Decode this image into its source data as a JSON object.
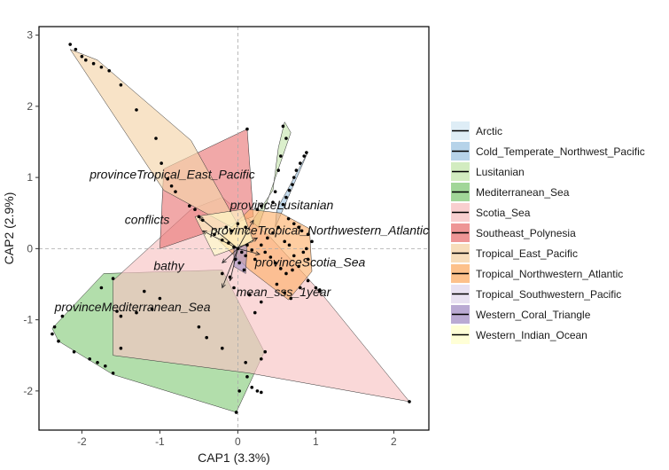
{
  "chart_data": {
    "type": "scatter",
    "xlabel": "CAP1 (3.3%)",
    "ylabel": "CAP2 (2.9%)",
    "xlim": [
      -2.55,
      2.45
    ],
    "ylim": [
      -2.55,
      3.12
    ],
    "x_ticks": [
      -2,
      -1,
      0,
      1,
      2
    ],
    "y_ticks": [
      -2,
      -1,
      0,
      1,
      2,
      3
    ],
    "x_tick_labels": [
      "-2",
      "-1",
      "0",
      "1",
      "2"
    ],
    "y_tick_labels": [
      "-2",
      "-1",
      "0",
      "1",
      "2",
      "3"
    ],
    "reference_lines": {
      "x": 0,
      "y": 0,
      "style": "dashed"
    },
    "legend": {
      "placement": "right"
    },
    "series": [
      {
        "name": "Arctic",
        "color": "#d6e8f4",
        "hull": []
      },
      {
        "name": "Cold_Temperate_Northwest_Pacific",
        "color": "#a4c8e4",
        "hull": [
          [
            0.48,
            0.3
          ],
          [
            0.9,
            1.36
          ],
          [
            0.5,
            0.55
          ]
        ]
      },
      {
        "name": "Lusitanian",
        "color": "#c7e7b0",
        "hull": [
          [
            0.18,
            0.38
          ],
          [
            0.45,
            0.82
          ],
          [
            0.52,
            1.42
          ],
          [
            0.6,
            1.78
          ],
          [
            0.68,
            1.63
          ],
          [
            0.2,
            0.1
          ]
        ]
      },
      {
        "name": "Mediterranean_Sea",
        "color": "#89cc7e",
        "hull": [
          [
            -2.38,
            -1.12
          ],
          [
            -1.72,
            -0.35
          ],
          [
            -0.2,
            -0.3
          ],
          [
            0.34,
            -1.45
          ],
          [
            -0.02,
            -2.3
          ],
          [
            -1.6,
            -1.77
          ],
          [
            -2.3,
            -1.3
          ]
        ]
      },
      {
        "name": "Scotia_Sea",
        "color": "#f8c3c3",
        "hull": [
          [
            -1.6,
            -0.45
          ],
          [
            -0.6,
            0.55
          ],
          [
            -0.2,
            0.72
          ],
          [
            0.4,
            0.18
          ],
          [
            1.05,
            -0.6
          ],
          [
            2.2,
            -2.15
          ],
          [
            0.15,
            -1.75
          ],
          [
            -1.6,
            -1.5
          ]
        ]
      },
      {
        "name": "Southeast_Polynesia",
        "color": "#ea7a7a",
        "hull": [
          [
            -1.0,
            0.0
          ],
          [
            -0.95,
            1.12
          ],
          [
            0.12,
            1.68
          ],
          [
            0.2,
            0.45
          ]
        ]
      },
      {
        "name": "Tropical_East_Pacific",
        "color": "#f5d4a9",
        "hull": [
          [
            -2.15,
            2.8
          ],
          [
            -1.8,
            2.65
          ],
          [
            -0.6,
            1.52
          ],
          [
            0.06,
            0.22
          ],
          [
            -0.95,
            0.82
          ]
        ]
      },
      {
        "name": "Tropical_Northwestern_Atlantic",
        "color": "#fdb26e",
        "hull": [
          [
            -0.25,
            0.12
          ],
          [
            0.15,
            0.55
          ],
          [
            0.55,
            0.5
          ],
          [
            0.92,
            0.28
          ],
          [
            0.95,
            -0.32
          ],
          [
            0.65,
            -0.72
          ],
          [
            0.15,
            -0.3
          ]
        ]
      },
      {
        "name": "Tropical_Southwestern_Pacific",
        "color": "#e2daee",
        "hull": []
      },
      {
        "name": "Western_Coral_Triangle",
        "color": "#a995c8",
        "hull": [
          [
            -0.05,
            0.02
          ],
          [
            0.12,
            0.05
          ],
          [
            0.1,
            -0.35
          ],
          [
            -0.05,
            -0.25
          ]
        ]
      },
      {
        "name": "Western_Indian_Ocean",
        "color": "#ffffcc",
        "hull": [
          [
            -0.55,
            0.45
          ],
          [
            0.05,
            0.55
          ],
          [
            0.2,
            0.1
          ],
          [
            -0.3,
            -0.1
          ]
        ]
      }
    ],
    "points": [
      [
        -2.15,
        2.87
      ],
      [
        -2.08,
        2.8
      ],
      [
        -2.0,
        2.7
      ],
      [
        -1.95,
        2.65
      ],
      [
        -1.85,
        2.6
      ],
      [
        -1.75,
        2.55
      ],
      [
        -1.65,
        2.5
      ],
      [
        -1.5,
        2.3
      ],
      [
        -1.3,
        1.95
      ],
      [
        -1.05,
        1.55
      ],
      [
        -0.98,
        1.2
      ],
      [
        -0.9,
        0.98
      ],
      [
        -0.85,
        0.88
      ],
      [
        -0.8,
        0.8
      ],
      [
        -0.62,
        0.6
      ],
      [
        -0.55,
        0.55
      ],
      [
        -0.5,
        0.45
      ],
      [
        -0.45,
        0.4
      ],
      [
        0.12,
        1.68
      ],
      [
        0.58,
        1.72
      ],
      [
        0.62,
        1.55
      ],
      [
        0.55,
        1.3
      ],
      [
        0.52,
        1.1
      ],
      [
        0.48,
        0.8
      ],
      [
        0.45,
        0.65
      ],
      [
        0.3,
        0.6
      ],
      [
        0.25,
        0.55
      ],
      [
        0.88,
        1.35
      ],
      [
        0.85,
        1.3
      ],
      [
        0.8,
        1.2
      ],
      [
        0.75,
        1.1
      ],
      [
        0.72,
        1.0
      ],
      [
        0.7,
        0.9
      ],
      [
        0.66,
        0.82
      ],
      [
        0.62,
        0.72
      ],
      [
        0.58,
        0.62
      ],
      [
        0.65,
        0.42
      ],
      [
        0.72,
        0.35
      ],
      [
        0.78,
        0.3
      ],
      [
        0.82,
        0.25
      ],
      [
        0.9,
        0.2
      ],
      [
        0.95,
        0.1
      ],
      [
        0.88,
        0.0
      ],
      [
        0.84,
        -0.05
      ],
      [
        0.9,
        -0.15
      ],
      [
        0.78,
        -0.25
      ],
      [
        0.7,
        -0.3
      ],
      [
        0.62,
        -0.35
      ],
      [
        0.55,
        -0.28
      ],
      [
        0.48,
        -0.2
      ],
      [
        0.42,
        -0.12
      ],
      [
        0.35,
        -0.05
      ],
      [
        0.3,
        0.05
      ],
      [
        0.38,
        0.15
      ],
      [
        0.45,
        0.22
      ],
      [
        0.52,
        0.3
      ],
      [
        0.6,
        0.1
      ],
      [
        0.66,
        0.05
      ],
      [
        0.72,
        -0.1
      ],
      [
        0.5,
        -0.5
      ],
      [
        0.6,
        -0.62
      ],
      [
        0.68,
        -0.7
      ],
      [
        0.8,
        -0.55
      ],
      [
        0.9,
        -0.45
      ],
      [
        1.0,
        -0.55
      ],
      [
        1.05,
        -0.6
      ],
      [
        -0.3,
        0.2
      ],
      [
        -0.2,
        0.12
      ],
      [
        -0.12,
        0.08
      ],
      [
        -0.05,
        0.02
      ],
      [
        0.0,
        0.0
      ],
      [
        0.05,
        -0.05
      ],
      [
        0.1,
        -0.1
      ],
      [
        0.02,
        -0.2
      ],
      [
        -0.03,
        -0.15
      ],
      [
        0.08,
        -0.3
      ],
      [
        0.12,
        0.05
      ],
      [
        0.18,
        -0.02
      ],
      [
        0.22,
        -0.15
      ],
      [
        -0.08,
        0.25
      ],
      [
        -0.15,
        0.3
      ],
      [
        0.0,
        0.35
      ],
      [
        0.1,
        0.3
      ],
      [
        -1.6,
        -0.42
      ],
      [
        -1.2,
        -0.6
      ],
      [
        -1.0,
        -0.7
      ],
      [
        -1.1,
        -0.85
      ],
      [
        -1.3,
        -0.9
      ],
      [
        -1.5,
        -0.95
      ],
      [
        -1.55,
        -0.88
      ],
      [
        -1.75,
        -0.55
      ],
      [
        -2.25,
        -0.95
      ],
      [
        -2.35,
        -1.1
      ],
      [
        -2.38,
        -1.2
      ],
      [
        -2.3,
        -1.3
      ],
      [
        -2.1,
        -1.45
      ],
      [
        -1.9,
        -1.55
      ],
      [
        -1.8,
        -1.6
      ],
      [
        -1.7,
        -1.65
      ],
      [
        -1.6,
        -1.75
      ],
      [
        -1.5,
        -1.4
      ],
      [
        -0.5,
        -1.1
      ],
      [
        -0.4,
        -1.25
      ],
      [
        0.35,
        -1.45
      ],
      [
        0.3,
        -1.55
      ],
      [
        0.1,
        -1.6
      ],
      [
        0.12,
        -1.8
      ],
      [
        0.18,
        -1.95
      ],
      [
        0.25,
        -2.0
      ],
      [
        0.3,
        -2.02
      ],
      [
        0.02,
        -2.0
      ],
      [
        -0.02,
        -2.3
      ],
      [
        -0.2,
        -1.4
      ],
      [
        0.22,
        -0.9
      ],
      [
        0.3,
        -0.75
      ],
      [
        0.15,
        -0.65
      ],
      [
        -0.05,
        -0.55
      ],
      [
        -0.1,
        -0.4
      ],
      [
        -0.2,
        -0.35
      ],
      [
        1.05,
        -0.58
      ],
      [
        2.2,
        -2.15
      ]
    ],
    "vectors": [
      {
        "label": "provinceTropical_East_Pacific",
        "end": [
          -0.5,
          0.45
        ],
        "label_pos": [
          -1.9,
          0.98
        ]
      },
      {
        "label": "provinceLusitanian",
        "end": [
          0.2,
          0.4
        ],
        "label_pos": [
          -0.1,
          0.55
        ]
      },
      {
        "label": "conflicts",
        "end": [
          -0.45,
          0.25
        ],
        "label_pos": [
          -1.45,
          0.35
        ]
      },
      {
        "label": "provinceTropical_Northwestern_Atlantic",
        "end": [
          0.25,
          0.15
        ],
        "label_pos": [
          -0.35,
          0.2
        ]
      },
      {
        "label": "provinceScotia_Sea",
        "end": [
          0.28,
          -0.08
        ],
        "label_pos": [
          0.22,
          -0.25
        ]
      },
      {
        "label": "bathy",
        "end": [
          -0.2,
          -0.2
        ],
        "label_pos": [
          -1.08,
          -0.3
        ]
      },
      {
        "label": "mean_sss_1year",
        "end": [
          -0.2,
          -0.55
        ],
        "label_pos": [
          -0.02,
          -0.67
        ]
      },
      {
        "label": "provinceMediterranean_Sea",
        "end": [
          -0.1,
          -0.45
        ],
        "label_pos": [
          -2.35,
          -0.88
        ]
      }
    ]
  }
}
